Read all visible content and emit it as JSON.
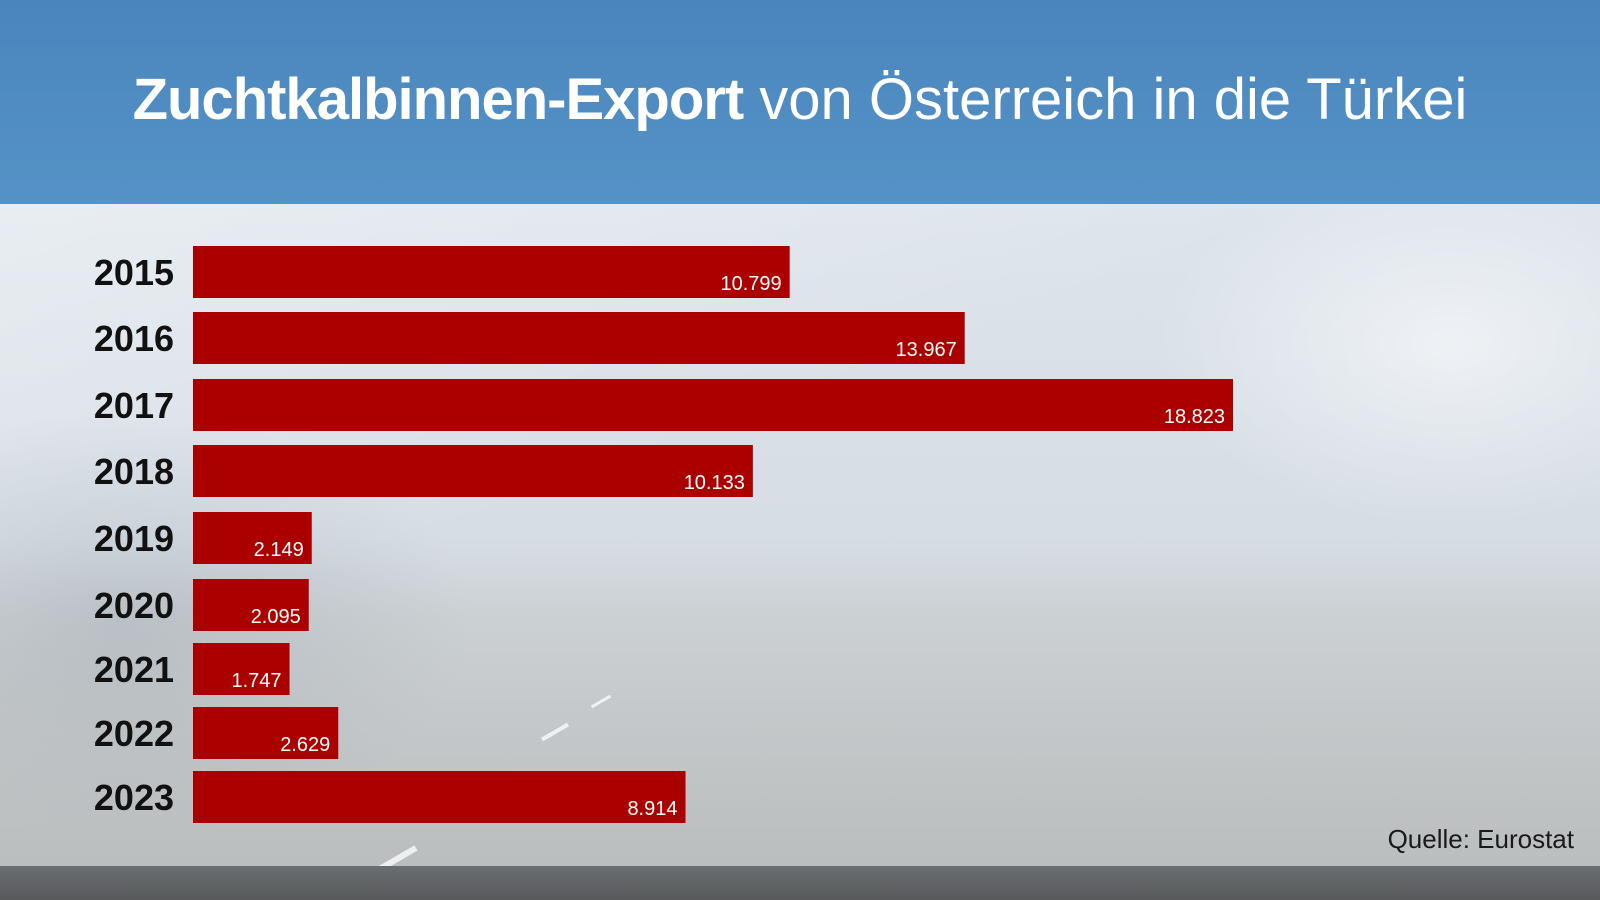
{
  "header": {
    "title_bold": "Zuchtkalbinnen-Export",
    "title_rest": " von Österreich in die Türkei"
  },
  "chart_data": {
    "type": "bar",
    "orientation": "horizontal",
    "categories": [
      "2015",
      "2016",
      "2017",
      "2018",
      "2019",
      "2020",
      "2021",
      "2022",
      "2023"
    ],
    "values": [
      10799,
      13967,
      18823,
      10133,
      2149,
      2095,
      1747,
      2629,
      8914
    ],
    "value_labels": [
      "10.799",
      "13.967",
      "18.823",
      "10.133",
      "2.149",
      "2.095",
      "1.747",
      "2.629",
      "8.914"
    ],
    "bar_color": "#aa0000",
    "grid": false,
    "legend": "none"
  },
  "source": "Quelle: Eurostat",
  "colors": {
    "header_bg": "#4f8cc2",
    "bar": "#aa0000",
    "title_text": "#ffffff"
  }
}
